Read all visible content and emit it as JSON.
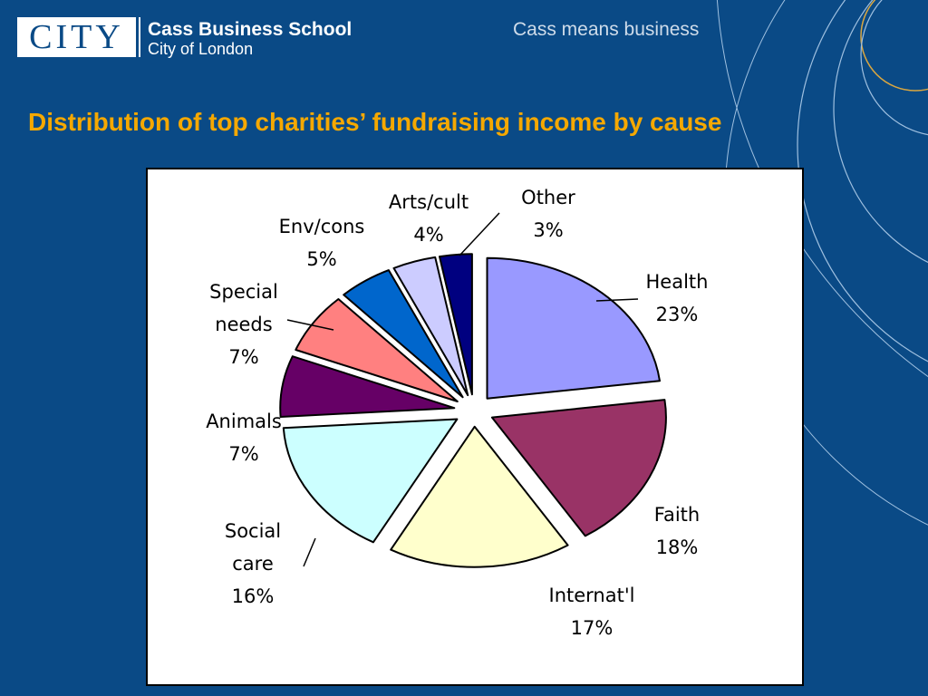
{
  "header": {
    "logo_text": "CITY",
    "school_name": "Cass Business School",
    "school_sub": "City of London",
    "tagline": "Cass means business"
  },
  "slide": {
    "title": "Distribution of top charities’ fundraising income by cause"
  },
  "colors": {
    "background": "#0a4a86",
    "title": "#f5a800",
    "arc_light": "#9fc0e0",
    "arc_gold": "#d9a640"
  },
  "chart_data": {
    "type": "pie",
    "title": "",
    "exploded": true,
    "slices": [
      {
        "category": "Health",
        "value": 23,
        "label_lines": [
          "Health",
          "23%"
        ],
        "color": "#9999ff"
      },
      {
        "category": "Faith",
        "value": 18,
        "label_lines": [
          "Faith",
          "18%"
        ],
        "color": "#993366"
      },
      {
        "category": "Internat'l",
        "value": 17,
        "label_lines": [
          "Internat'l",
          "17%"
        ],
        "color": "#ffffcc"
      },
      {
        "category": "Social care",
        "value": 16,
        "label_lines": [
          "Social",
          "care",
          "16%"
        ],
        "color": "#ccffff"
      },
      {
        "category": "Animals",
        "value": 7,
        "label_lines": [
          "Animals",
          "7%"
        ],
        "color": "#660066"
      },
      {
        "category": "Special needs",
        "value": 7,
        "label_lines": [
          "Special",
          "needs",
          "7%"
        ],
        "color": "#ff8080"
      },
      {
        "category": "Env/cons",
        "value": 5,
        "label_lines": [
          "Env/cons",
          "5%"
        ],
        "color": "#0066cc"
      },
      {
        "category": "Arts/cult",
        "value": 4,
        "label_lines": [
          "Arts/cult",
          "4%"
        ],
        "color": "#ccccff"
      },
      {
        "category": "Other",
        "value": 3,
        "label_lines": [
          "Other",
          "3%"
        ],
        "color": "#000080"
      }
    ]
  }
}
